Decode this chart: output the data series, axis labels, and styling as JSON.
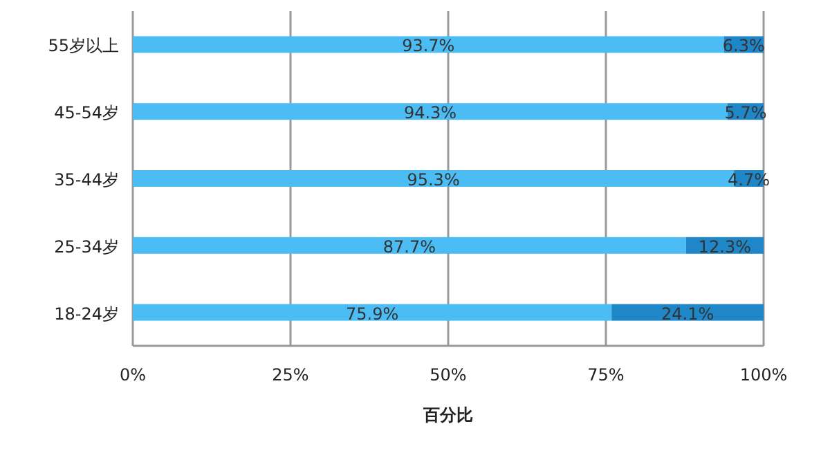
{
  "chart_data": {
    "type": "bar",
    "orientation": "horizontal",
    "stacked": true,
    "xlabel": "百分比",
    "categories": [
      "55岁以上",
      "45-54岁",
      "35-44岁",
      "25-34岁",
      "18-24岁"
    ],
    "series": [
      {
        "color": "#4cbdf4",
        "values": [
          93.7,
          94.3,
          95.3,
          87.7,
          75.9
        ],
        "value_labels": [
          "93.7%",
          "94.3%",
          "95.3%",
          "87.7%",
          "75.9%"
        ]
      },
      {
        "color": "#1f86c8",
        "values": [
          6.3,
          5.7,
          4.7,
          12.3,
          24.1
        ],
        "value_labels": [
          "6.3%",
          "5.7%",
          "4.7%",
          "12.3%",
          "24.1%"
        ]
      }
    ],
    "xlim": [
      0,
      100
    ],
    "xticks": [
      {
        "value": 0,
        "label": "0%"
      },
      {
        "value": 25,
        "label": "25%"
      },
      {
        "value": 50,
        "label": "50%"
      },
      {
        "value": 75,
        "label": "75%"
      },
      {
        "value": 100,
        "label": "100%"
      }
    ],
    "grid": "x"
  }
}
